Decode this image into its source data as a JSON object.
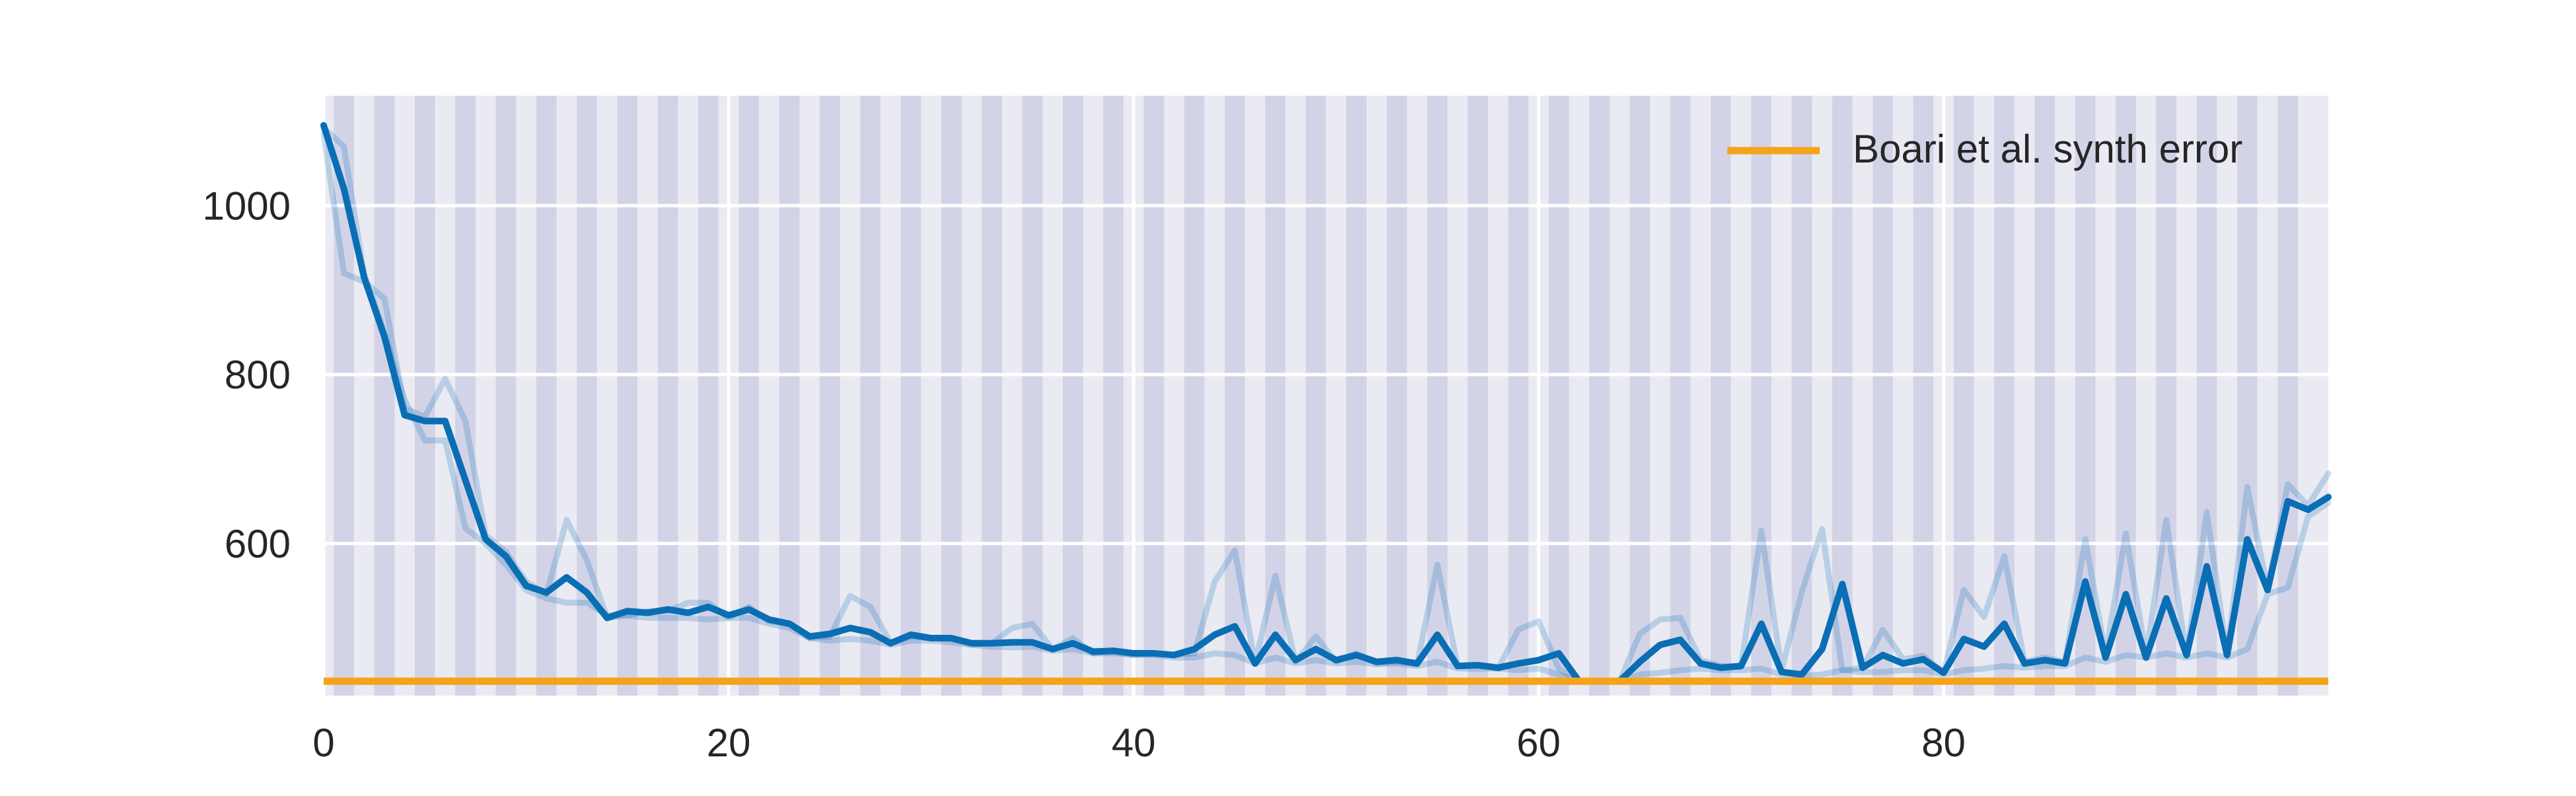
{
  "chart_data": {
    "type": "line",
    "title": "",
    "xlabel": "",
    "ylabel": "",
    "xlim": [
      0,
      99
    ],
    "ylim": [
      420,
      1130
    ],
    "x_ticks": [
      0,
      20,
      40,
      60,
      80
    ],
    "y_ticks": [
      600,
      800,
      1000
    ],
    "grid": true,
    "background_color": "#eaeaf2",
    "stripe_color": "#d3d3e7",
    "stripes": "alternating vertical bands, one per x unit (odd x bands shaded)",
    "legend": {
      "placement": "top-right",
      "entries": [
        {
          "label": "Boari et al. synth error",
          "color": "#f5a31a"
        }
      ]
    },
    "baseline": {
      "name": "Boari et al. synth error",
      "y": 437,
      "color": "#f5a31a"
    },
    "main_series": {
      "color": "#0a6eb4",
      "values": [
        1095,
        1020,
        915,
        845,
        752,
        745,
        745,
        675,
        605,
        585,
        550,
        542,
        560,
        542,
        512,
        520,
        518,
        522,
        518,
        525,
        515,
        522,
        510,
        505,
        490,
        493,
        500,
        495,
        482,
        492,
        488,
        488,
        482,
        482,
        483,
        483,
        475,
        482,
        472,
        473,
        470,
        470,
        468,
        475,
        492,
        502,
        458,
        492,
        462,
        475,
        462,
        468,
        460,
        462,
        458,
        492,
        455,
        456,
        453,
        458,
        462,
        470,
        437,
        437,
        437,
        460,
        480,
        486,
        458,
        453,
        455,
        505,
        448,
        445,
        475,
        552,
        453,
        468,
        458,
        463,
        447,
        487,
        478,
        505,
        458,
        462,
        458,
        555,
        465,
        540,
        465,
        535,
        468,
        573,
        468,
        605,
        545,
        650,
        640,
        655
      ]
    },
    "faint_series": [
      {
        "color": "#0a6eb4",
        "opacity": 0.22,
        "values": [
          1085,
          920,
          910,
          890,
          760,
          750,
          795,
          745,
          610,
          590,
          555,
          540,
          628,
          580,
          512,
          515,
          520,
          520,
          530,
          530,
          512,
          525,
          508,
          505,
          488,
          490,
          538,
          525,
          482,
          490,
          488,
          487,
          480,
          482,
          500,
          505,
          475,
          488,
          470,
          472,
          468,
          470,
          468,
          470,
          555,
          592,
          458,
          562,
          460,
          490,
          460,
          470,
          458,
          460,
          457,
          575,
          455,
          456,
          452,
          498,
          508,
          452,
          437,
          437,
          437,
          493,
          510,
          512,
          462,
          455,
          455,
          615,
          450,
          543,
          617,
          450,
          453,
          498,
          463,
          467,
          447,
          545,
          513,
          585,
          460,
          465,
          460,
          605,
          468,
          612,
          467,
          628,
          467,
          637,
          468,
          667,
          546,
          670,
          645,
          683
        ]
      },
      {
        "color": "#0a6eb4",
        "opacity": 0.22,
        "values": [
          1092,
          1070,
          918,
          850,
          770,
          722,
          722,
          618,
          600,
          575,
          545,
          535,
          530,
          530,
          515,
          515,
          512,
          512,
          512,
          510,
          512,
          512,
          505,
          500,
          488,
          485,
          487,
          485,
          480,
          485,
          485,
          483,
          480,
          478,
          477,
          478,
          473,
          475,
          470,
          470,
          468,
          468,
          465,
          465,
          470,
          468,
          458,
          465,
          458,
          462,
          458,
          460,
          457,
          458,
          455,
          460,
          452,
          452,
          452,
          450,
          452,
          445,
          437,
          437,
          437,
          445,
          447,
          450,
          452,
          450,
          450,
          452,
          445,
          443,
          445,
          450,
          448,
          448,
          450,
          450,
          445,
          450,
          452,
          455,
          453,
          455,
          455,
          465,
          460,
          468,
          465,
          470,
          465,
          470,
          465,
          475,
          540,
          548,
          632,
          648
        ]
      }
    ]
  }
}
